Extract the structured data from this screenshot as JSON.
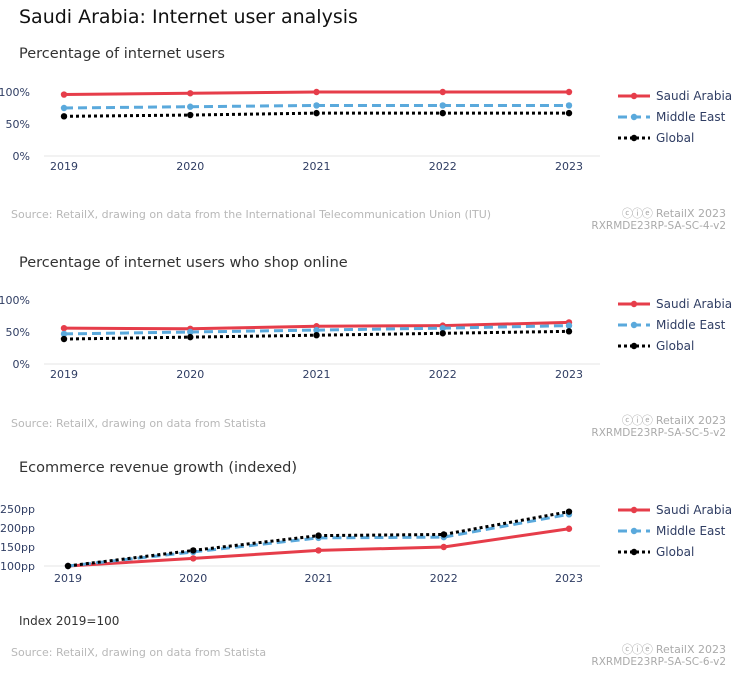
{
  "title": "Saudi Arabia: Internet user analysis",
  "colors": {
    "saudi": "#e63d4a",
    "middle_east": "#5aa9dc",
    "global": "#000000",
    "axis_text": "#2f3d63"
  },
  "sections": [
    {
      "subtitle": "Percentage of internet users",
      "source": "Source: RetailX, drawing on data from the International Telecommunication Union (ITU)",
      "brand": "RetailX 2023",
      "code": "RXRMDE23RP-SA-SC-4-v2",
      "note": ""
    },
    {
      "subtitle": "Percentage of internet users who shop online",
      "source": "Source: RetailX, drawing on data from Statista",
      "brand": "RetailX 2023",
      "code": "RXRMDE23RP-SA-SC-5-v2",
      "note": ""
    },
    {
      "subtitle": "Ecommerce revenue growth (indexed)",
      "source": "Source: RetailX, drawing on data from Statista",
      "brand": "RetailX 2023",
      "code": "RXRMDE23RP-SA-SC-6-v2",
      "note": "Index 2019=100"
    }
  ],
  "chart_data": [
    {
      "type": "line",
      "title": "Percentage of internet users",
      "x": [
        "2019",
        "2020",
        "2021",
        "2022",
        "2023"
      ],
      "yticks": [
        "0%",
        "50%",
        "100%"
      ],
      "ylim": [
        0,
        100
      ],
      "legend": "right",
      "series": [
        {
          "name": "Saudi Arabia",
          "values": [
            96,
            98,
            100,
            100,
            100
          ]
        },
        {
          "name": "Middle East",
          "values": [
            75,
            77,
            79,
            79,
            79
          ]
        },
        {
          "name": "Global",
          "values": [
            62,
            64,
            67,
            67,
            67
          ]
        }
      ]
    },
    {
      "type": "line",
      "title": "Percentage of internet users who shop online",
      "x": [
        "2019",
        "2020",
        "2021",
        "2022",
        "2023"
      ],
      "yticks": [
        "0%",
        "50%",
        "100%"
      ],
      "ylim": [
        0,
        100
      ],
      "legend": "right",
      "series": [
        {
          "name": "Saudi Arabia",
          "values": [
            56,
            55,
            59,
            60,
            65
          ]
        },
        {
          "name": "Middle East",
          "values": [
            47,
            50,
            53,
            56,
            60
          ]
        },
        {
          "name": "Global",
          "values": [
            39,
            42,
            45,
            48,
            51
          ]
        }
      ]
    },
    {
      "type": "line",
      "title": "Ecommerce revenue growth (indexed)",
      "x": [
        "2019",
        "2020",
        "2021",
        "2022",
        "2023"
      ],
      "yticks": [
        "100pp",
        "150pp",
        "200pp",
        "250pp"
      ],
      "ylim": [
        100,
        250
      ],
      "legend": "right",
      "series": [
        {
          "name": "Saudi Arabia",
          "values": [
            100,
            120,
            141,
            150,
            198
          ]
        },
        {
          "name": "Middle East",
          "values": [
            100,
            137,
            174,
            176,
            236
          ]
        },
        {
          "name": "Global",
          "values": [
            100,
            141,
            180,
            183,
            243
          ]
        }
      ]
    }
  ]
}
